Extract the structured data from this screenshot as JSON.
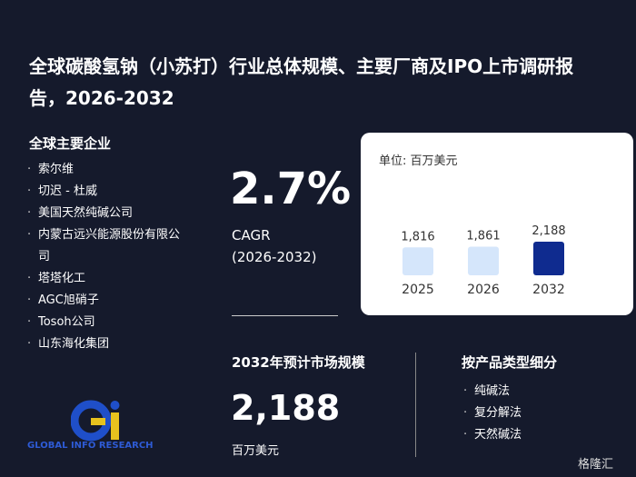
{
  "header": {
    "title": "全球碳酸氢钠（小苏打）行业总体规模、主要厂商及IPO上市调研报告，2026-2032"
  },
  "companies": {
    "title": "全球主要企业",
    "items": [
      "索尔维",
      "切迟 - 杜威",
      "美国天然纯碱公司",
      "内蒙古远兴能源股份有限公司",
      "塔塔化工",
      "AGC旭硝子",
      "Tosoh公司",
      "山东海化集团"
    ]
  },
  "cagr": {
    "value": "2.7%",
    "label": "CAGR",
    "period": "(2026-2032)"
  },
  "market_size": {
    "title": "2032年预计市场规模",
    "value": "2,188",
    "unit": "百万美元"
  },
  "segments": {
    "title": "按产品类型细分",
    "items": [
      "纯碱法",
      "复分解法",
      "天然碱法"
    ]
  },
  "logo": {
    "text": "GLOBAL INFO RESEARCH"
  },
  "brand": "格隆汇",
  "chart_data": {
    "type": "bar",
    "unit_label": "单位: 百万美元",
    "categories": [
      "2025",
      "2026",
      "2032"
    ],
    "values": [
      1816,
      1861,
      2188
    ],
    "value_labels": [
      "1,816",
      "1,861",
      "2,188"
    ],
    "colors": [
      "#d5e6fb",
      "#d5e6fb",
      "#0f2b8f"
    ]
  }
}
